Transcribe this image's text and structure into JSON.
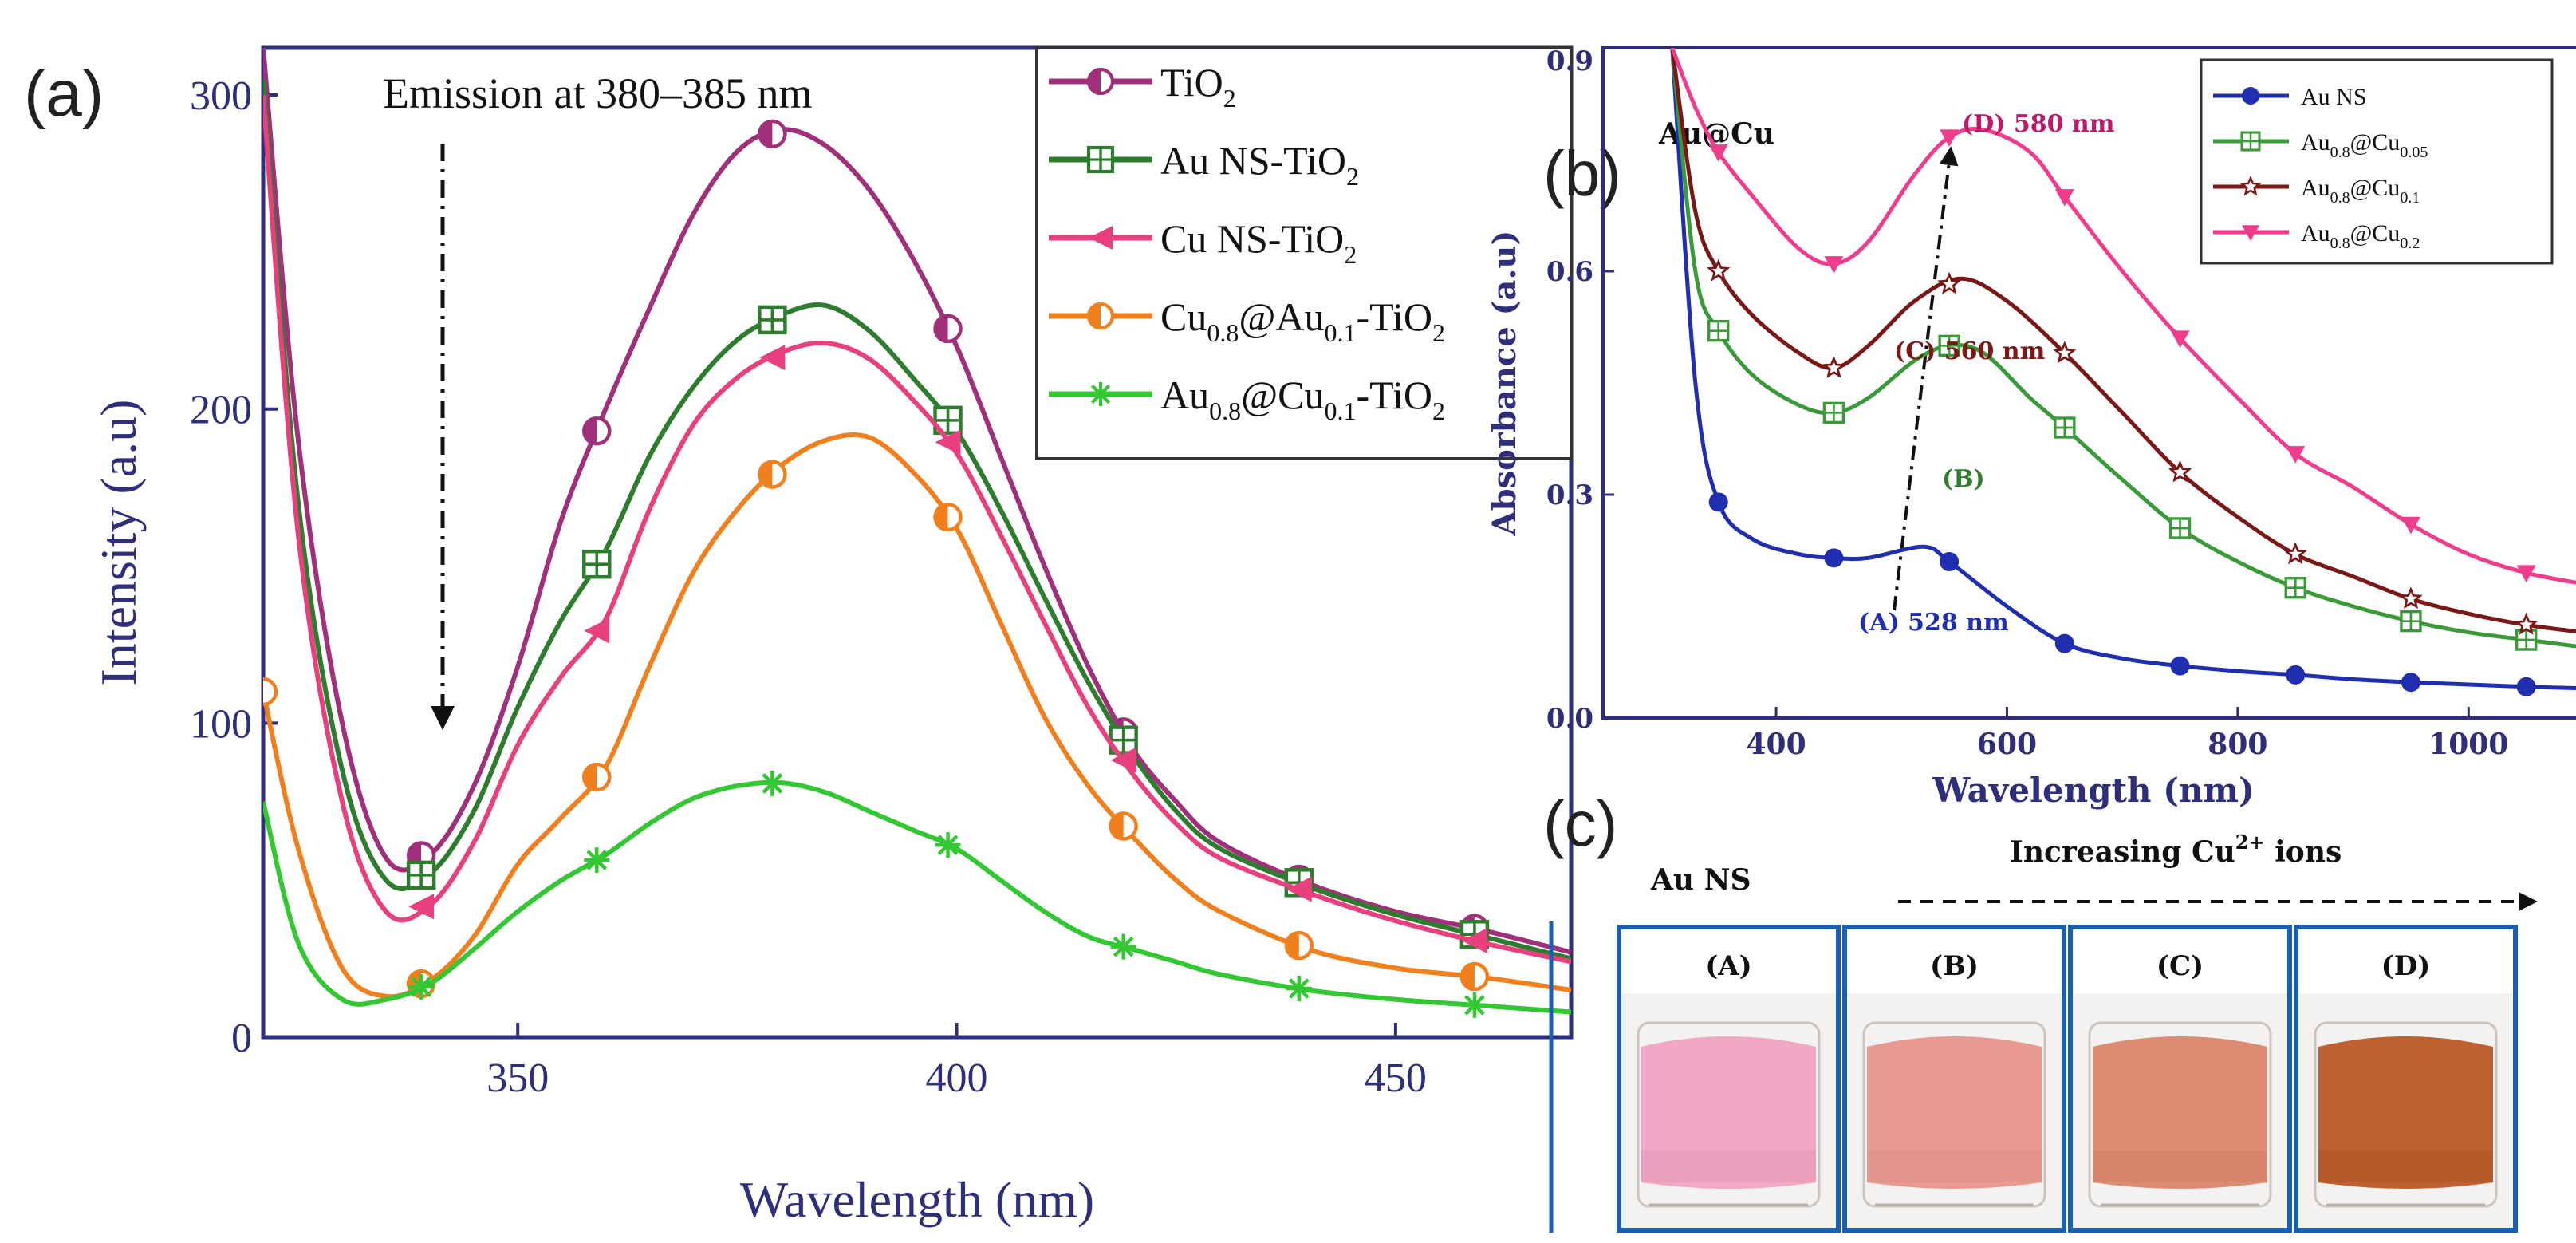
{
  "chart_data": [
    {
      "panel": "(a)",
      "type": "line",
      "title": "Emission at 380–385 nm",
      "xlabel": "Wavelength (nm)",
      "ylabel": "Intensity (a.u)",
      "xlim": [
        321,
        470
      ],
      "ylim": [
        0,
        315
      ],
      "xticks": [
        350,
        400,
        450
      ],
      "yticks": [
        0,
        100,
        200,
        300
      ],
      "legend_position": "top-right",
      "series": [
        {
          "name": "TiO2",
          "color": "#a0307a",
          "marker": "circle-half",
          "x": [
            321,
            325,
            330,
            335,
            340,
            345,
            350,
            355,
            360,
            365,
            370,
            375,
            380,
            385,
            390,
            395,
            400,
            405,
            410,
            415,
            420,
            425,
            430,
            440,
            450,
            460,
            470
          ],
          "y": [
            315,
            190,
            100,
            57,
            58,
            80,
            118,
            165,
            200,
            232,
            262,
            282,
            289,
            284,
            270,
            248,
            220,
            185,
            150,
            118,
            92,
            75,
            62,
            49,
            40,
            34,
            27
          ],
          "markers_x": [
            339,
            359,
            379,
            399,
            419,
            439,
            459
          ]
        },
        {
          "name": "Au NS-TiO2",
          "color": "#2e7d2e",
          "marker": "square-cross",
          "x": [
            321,
            325,
            330,
            335,
            340,
            345,
            350,
            355,
            360,
            365,
            370,
            375,
            380,
            385,
            390,
            395,
            400,
            405,
            410,
            415,
            420,
            425,
            430,
            440,
            450,
            460,
            470
          ],
          "y": [
            305,
            170,
            85,
            50,
            52,
            72,
            105,
            133,
            155,
            185,
            207,
            222,
            230,
            233,
            225,
            210,
            193,
            168,
            140,
            113,
            90,
            72,
            60,
            48,
            39,
            32,
            25
          ],
          "markers_x": [
            339,
            359,
            379,
            399,
            419,
            439,
            459
          ]
        },
        {
          "name": "Cu NS-TiO2",
          "color": "#e8407e",
          "marker": "triangle-left",
          "x": [
            321,
            325,
            330,
            335,
            340,
            345,
            350,
            355,
            360,
            365,
            370,
            375,
            380,
            385,
            390,
            395,
            400,
            405,
            410,
            415,
            420,
            425,
            430,
            440,
            450,
            460,
            470
          ],
          "y": [
            300,
            160,
            75,
            40,
            42,
            62,
            93,
            115,
            133,
            168,
            195,
            210,
            218,
            221,
            216,
            203,
            186,
            160,
            132,
            105,
            84,
            68,
            57,
            46,
            37,
            30,
            24
          ],
          "markers_x": [
            339,
            359,
            379,
            399,
            419,
            439,
            459
          ]
        },
        {
          "name": "Cu0.8@Au0.1-TiO2",
          "color": "#f0801e",
          "marker": "circle-half",
          "x": [
            321,
            325,
            330,
            335,
            340,
            345,
            350,
            355,
            360,
            365,
            370,
            375,
            380,
            385,
            390,
            395,
            400,
            405,
            410,
            415,
            420,
            425,
            430,
            440,
            450,
            460,
            470
          ],
          "y": [
            110,
            60,
            22,
            13,
            18,
            32,
            55,
            70,
            86,
            118,
            148,
            168,
            182,
            190,
            191,
            180,
            162,
            132,
            102,
            80,
            64,
            50,
            40,
            28,
            22,
            19,
            15
          ],
          "markers_x": [
            321,
            339,
            359,
            379,
            399,
            419,
            439,
            459
          ]
        },
        {
          "name": "Au0.8@Cu0.1-TiO2",
          "color": "#34c734",
          "marker": "asterisk",
          "x": [
            321,
            325,
            330,
            335,
            340,
            345,
            350,
            355,
            360,
            365,
            370,
            375,
            380,
            385,
            390,
            395,
            400,
            405,
            410,
            415,
            420,
            425,
            430,
            440,
            450,
            460,
            470
          ],
          "y": [
            75,
            30,
            12,
            12,
            17,
            28,
            40,
            50,
            58,
            68,
            76,
            80,
            81,
            78,
            72,
            66,
            60,
            50,
            40,
            32,
            28,
            24,
            20,
            15,
            12,
            10,
            8
          ],
          "markers_x": [
            339,
            359,
            379,
            399,
            419,
            439,
            459
          ]
        }
      ]
    },
    {
      "panel": "(b)",
      "type": "line",
      "title": "Au@Cu",
      "xlabel": "Wavelength (nm)",
      "ylabel": "Absorbance (a.u)",
      "xlim": [
        250,
        1100
      ],
      "ylim": [
        0.0,
        0.9
      ],
      "xticks": [
        400,
        600,
        800,
        1000
      ],
      "yticks": [
        0.0,
        0.3,
        0.6,
        0.9
      ],
      "ytick_labels": [
        "0.0",
        "0.3",
        "0.6",
        "0.9"
      ],
      "legend_position": "top-right",
      "annotations": [
        "(A) 528 nm",
        "(B)",
        "(C) 560 nm",
        "(D) 580 nm"
      ],
      "series": [
        {
          "name": "Au NS",
          "color": "#1f2fb0",
          "marker": "circle",
          "x": [
            310,
            330,
            350,
            380,
            420,
            450,
            480,
            528,
            550,
            600,
            650,
            700,
            750,
            800,
            850,
            900,
            950,
            1000,
            1050,
            1100
          ],
          "y": [
            0.9,
            0.45,
            0.29,
            0.24,
            0.22,
            0.215,
            0.215,
            0.23,
            0.21,
            0.15,
            0.1,
            0.08,
            0.07,
            0.063,
            0.058,
            0.052,
            0.048,
            0.045,
            0.042,
            0.04
          ],
          "markers_x": [
            350,
            450,
            550,
            650,
            750,
            850,
            950,
            1050
          ]
        },
        {
          "name": "Au0.8@Cu0.05",
          "color": "#3a9a3a",
          "marker": "square-cross",
          "x": [
            310,
            330,
            350,
            380,
            420,
            450,
            480,
            520,
            550,
            580,
            620,
            650,
            700,
            750,
            800,
            850,
            900,
            950,
            1000,
            1050,
            1100
          ],
          "y": [
            0.9,
            0.6,
            0.52,
            0.46,
            0.42,
            0.41,
            0.43,
            0.48,
            0.5,
            0.49,
            0.43,
            0.39,
            0.32,
            0.255,
            0.21,
            0.175,
            0.15,
            0.13,
            0.115,
            0.105,
            0.095
          ],
          "markers_x": [
            350,
            450,
            550,
            650,
            750,
            850,
            950,
            1050
          ]
        },
        {
          "name": "Au0.8@Cu0.1",
          "color": "#7a1818",
          "marker": "star",
          "x": [
            310,
            330,
            350,
            380,
            420,
            450,
            480,
            520,
            560,
            600,
            650,
            700,
            750,
            800,
            850,
            900,
            950,
            1000,
            1050,
            1100
          ],
          "y": [
            0.9,
            0.68,
            0.6,
            0.54,
            0.49,
            0.47,
            0.5,
            0.56,
            0.59,
            0.56,
            0.49,
            0.41,
            0.33,
            0.27,
            0.22,
            0.19,
            0.16,
            0.14,
            0.125,
            0.115
          ],
          "markers_x": [
            350,
            450,
            550,
            650,
            750,
            850,
            950,
            1050
          ]
        },
        {
          "name": "Au0.8@Cu0.2",
          "color": "#f03c8c",
          "marker": "triangle-down",
          "x": [
            310,
            330,
            350,
            380,
            420,
            450,
            480,
            520,
            550,
            580,
            620,
            650,
            700,
            750,
            800,
            850,
            900,
            950,
            1000,
            1050,
            1100
          ],
          "y": [
            0.9,
            0.82,
            0.76,
            0.7,
            0.63,
            0.61,
            0.64,
            0.73,
            0.78,
            0.79,
            0.76,
            0.7,
            0.6,
            0.51,
            0.43,
            0.355,
            0.31,
            0.26,
            0.22,
            0.195,
            0.18
          ],
          "markers_x": [
            350,
            450,
            550,
            650,
            750,
            850,
            950,
            1050
          ]
        }
      ]
    }
  ],
  "labels": {
    "panel_a": "(a)",
    "panel_b": "(b)",
    "panel_c": "(c)"
  },
  "legend_a": [
    {
      "base": "TiO",
      "sub1": "2",
      "mid": "",
      "sub2": "",
      "tail": ""
    },
    {
      "base": "Au NS-TiO",
      "sub1": "2",
      "mid": "",
      "sub2": "",
      "tail": ""
    },
    {
      "base": "Cu NS-TiO",
      "sub1": "2",
      "mid": "",
      "sub2": "",
      "tail": ""
    },
    {
      "base": "Cu",
      "sub1": "0.8",
      "mid": "@Au",
      "sub2": "0.1",
      "tail": "-TiO",
      "sub3": "2"
    },
    {
      "base": "Au",
      "sub1": "0.8",
      "mid": "@Cu",
      "sub2": "0.1",
      "tail": "-TiO",
      "sub3": "2"
    }
  ],
  "legend_b": [
    {
      "base": "Au NS",
      "sub1": "",
      "mid": "",
      "sub2": ""
    },
    {
      "base": "Au",
      "sub1": "0.8",
      "mid": "@Cu",
      "sub2": "0.05"
    },
    {
      "base": "Au",
      "sub1": "0.8",
      "mid": "@Cu",
      "sub2": "0.1"
    },
    {
      "base": "Au",
      "sub1": "0.8",
      "mid": "@Cu",
      "sub2": "0.2"
    }
  ],
  "panel_c": {
    "left_label": "Au NS",
    "increasing_label_pre": "Increasing Cu",
    "increasing_label_sup": "2+",
    "increasing_label_post": " ions",
    "vials": [
      {
        "label": "(A)",
        "color": "#f0a8c4",
        "color_dark": "#e08fb0"
      },
      {
        "label": "(B)",
        "color": "#e89a90",
        "color_dark": "#d78a80"
      },
      {
        "label": "(C)",
        "color": "#dc8c70",
        "color_dark": "#c87a5e"
      },
      {
        "label": "(D)",
        "color": "#bf6030",
        "color_dark": "#a64e22"
      }
    ]
  }
}
